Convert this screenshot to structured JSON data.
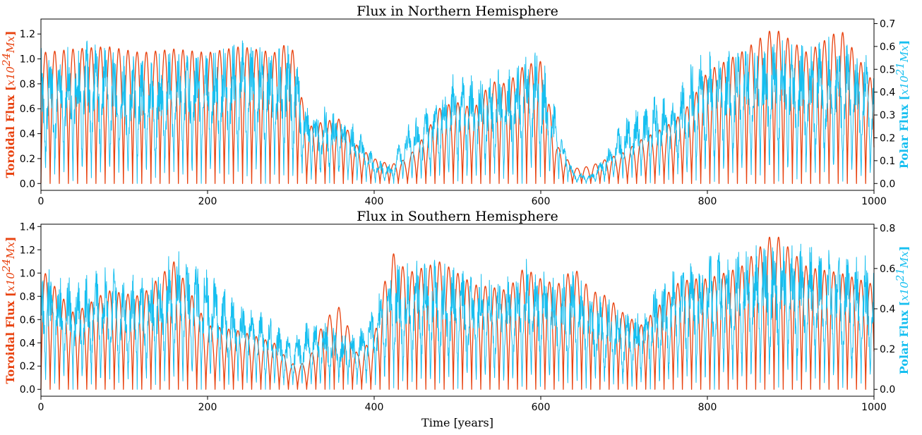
{
  "colors": {
    "toroidal": "#e8420f",
    "polar": "#16bff0",
    "axis": "#000000"
  },
  "xlabel": "Time [years]",
  "toroidal_label": {
    "main": "Toroidal Flux ",
    "open": "[",
    "unit": "x10",
    "exp": "24",
    "unit2": "Mx",
    "close": "]"
  },
  "polar_label": {
    "main": "Polar Flux ",
    "open": "[",
    "unit": "x10",
    "exp": "21",
    "unit2": "Mx",
    "close": "]"
  },
  "chart_data": [
    {
      "type": "line",
      "title": "Flux in Northern Hemisphere",
      "xlim": [
        0,
        1000
      ],
      "xticks": [
        0,
        200,
        400,
        600,
        800,
        1000
      ],
      "ylim_left": [
        0,
        1.32
      ],
      "yticks_left": [
        0.0,
        0.2,
        0.4,
        0.6,
        0.8,
        1.0,
        1.2
      ],
      "ylim_right": [
        0,
        0.72
      ],
      "yticks_right": [
        0.0,
        0.1,
        0.2,
        0.3,
        0.4,
        0.5,
        0.6,
        0.7
      ],
      "cycle_period_years": 11,
      "series": [
        {
          "axis": "left",
          "color": "#e8420f",
          "envelope_years": [
            0,
            40,
            80,
            120,
            160,
            200,
            240,
            280,
            300,
            320,
            340,
            360,
            380,
            400,
            420,
            440,
            460,
            480,
            500,
            520,
            540,
            560,
            580,
            600,
            620,
            640,
            660,
            680,
            700,
            720,
            740,
            760,
            780,
            800,
            840,
            880,
            920,
            960,
            1000
          ],
          "envelope_values": [
            1.05,
            1.08,
            1.1,
            1.05,
            1.08,
            1.05,
            1.1,
            1.05,
            1.15,
            0.45,
            0.5,
            0.52,
            0.3,
            0.2,
            0.15,
            0.2,
            0.38,
            0.62,
            0.65,
            0.6,
            0.82,
            0.8,
            0.95,
            0.98,
            0.3,
            0.12,
            0.14,
            0.2,
            0.25,
            0.35,
            0.42,
            0.5,
            0.65,
            0.9,
            1.05,
            1.25,
            1.05,
            1.24,
            0.8
          ]
        },
        {
          "axis": "right",
          "color": "#16bff0",
          "envelope_years": [
            0,
            40,
            80,
            120,
            160,
            200,
            240,
            280,
            300,
            320,
            340,
            360,
            380,
            400,
            420,
            440,
            460,
            480,
            500,
            520,
            540,
            560,
            580,
            600,
            620,
            640,
            660,
            680,
            700,
            720,
            740,
            760,
            780,
            800,
            840,
            880,
            920,
            960,
            1000
          ],
          "envelope_values": [
            0.6,
            0.62,
            0.62,
            0.55,
            0.6,
            0.62,
            0.64,
            0.6,
            0.65,
            0.35,
            0.35,
            0.32,
            0.25,
            0.12,
            0.08,
            0.28,
            0.32,
            0.4,
            0.5,
            0.48,
            0.5,
            0.52,
            0.6,
            0.58,
            0.3,
            0.05,
            0.04,
            0.15,
            0.3,
            0.35,
            0.4,
            0.38,
            0.52,
            0.6,
            0.62,
            0.66,
            0.64,
            0.63,
            0.55
          ]
        }
      ]
    },
    {
      "type": "line",
      "title": "Flux in Southern Hemisphere",
      "xlim": [
        0,
        1000
      ],
      "xticks": [
        0,
        200,
        400,
        600,
        800,
        1000
      ],
      "ylim_left": [
        0,
        1.42
      ],
      "yticks_left": [
        0.0,
        0.2,
        0.4,
        0.6,
        0.8,
        1.0,
        1.2,
        1.4
      ],
      "ylim_right": [
        0,
        0.82
      ],
      "yticks_right": [
        0.0,
        0.2,
        0.4,
        0.6,
        0.8
      ],
      "cycle_period_years": 11,
      "series": [
        {
          "axis": "left",
          "color": "#e8420f",
          "envelope_years": [
            0,
            40,
            80,
            120,
            160,
            200,
            240,
            280,
            300,
            320,
            340,
            360,
            380,
            400,
            420,
            440,
            460,
            480,
            500,
            520,
            540,
            560,
            580,
            600,
            620,
            640,
            660,
            680,
            700,
            720,
            740,
            760,
            780,
            800,
            840,
            880,
            920,
            960,
            1000
          ],
          "envelope_values": [
            1.05,
            0.65,
            0.85,
            0.8,
            1.1,
            0.55,
            0.5,
            0.4,
            0.22,
            0.22,
            0.6,
            0.72,
            0.3,
            0.45,
            1.2,
            1.0,
            1.05,
            1.1,
            1.0,
            0.9,
            0.88,
            0.85,
            1.05,
            0.95,
            0.9,
            1.05,
            0.85,
            0.8,
            0.65,
            0.55,
            0.7,
            0.9,
            0.95,
            0.95,
            1.05,
            1.35,
            1.05,
            1.0,
            0.9
          ]
        },
        {
          "axis": "right",
          "color": "#16bff0",
          "envelope_years": [
            0,
            40,
            80,
            120,
            160,
            200,
            240,
            280,
            300,
            320,
            340,
            360,
            380,
            400,
            420,
            440,
            460,
            480,
            500,
            520,
            540,
            560,
            580,
            600,
            620,
            640,
            660,
            680,
            700,
            720,
            740,
            760,
            780,
            800,
            840,
            880,
            920,
            960,
            1000
          ],
          "envelope_values": [
            0.65,
            0.55,
            0.62,
            0.55,
            0.7,
            0.62,
            0.45,
            0.35,
            0.25,
            0.35,
            0.35,
            0.3,
            0.28,
            0.45,
            0.65,
            0.62,
            0.68,
            0.65,
            0.62,
            0.6,
            0.6,
            0.58,
            0.65,
            0.62,
            0.55,
            0.6,
            0.5,
            0.45,
            0.4,
            0.4,
            0.55,
            0.6,
            0.65,
            0.7,
            0.72,
            0.78,
            0.72,
            0.7,
            0.65
          ]
        }
      ]
    }
  ]
}
